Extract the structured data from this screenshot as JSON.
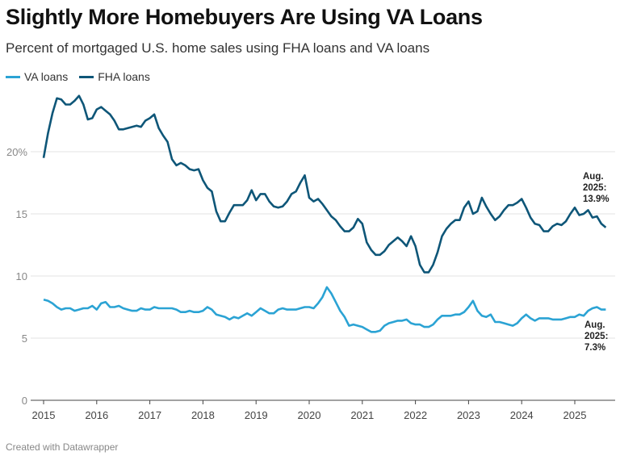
{
  "title": "Slightly More Homebuyers Are Using VA Loans",
  "subtitle": "Percent of mortgaged U.S. home sales using FHA loans and VA loans",
  "footer": "Created with Datawrapper",
  "colors": {
    "va": "#2ba3d4",
    "fha": "#0e5678"
  },
  "chart_data": {
    "type": "line",
    "x_start": "2015-01",
    "x_end": "2025-08",
    "x_frequency": "monthly",
    "xlim": [
      2015,
      2025.7
    ],
    "ylim": [
      0,
      25
    ],
    "y_ticks": [
      "0",
      "5",
      "10",
      "15",
      "20%"
    ],
    "y_tick_values": [
      0,
      5,
      10,
      15,
      20
    ],
    "x_ticks": [
      "2015",
      "2016",
      "2017",
      "2018",
      "2019",
      "2020",
      "2021",
      "2022",
      "2023",
      "2024",
      "2025"
    ],
    "grid": true,
    "legend": "top-left",
    "series": [
      {
        "name": "VA loans",
        "color": "#2ba3d4",
        "values": [
          8.1,
          8.0,
          7.8,
          7.5,
          7.3,
          7.4,
          7.4,
          7.2,
          7.3,
          7.4,
          7.4,
          7.6,
          7.3,
          7.8,
          7.9,
          7.5,
          7.5,
          7.6,
          7.4,
          7.3,
          7.2,
          7.2,
          7.4,
          7.3,
          7.3,
          7.5,
          7.4,
          7.4,
          7.4,
          7.4,
          7.3,
          7.1,
          7.1,
          7.2,
          7.1,
          7.1,
          7.2,
          7.5,
          7.3,
          6.9,
          6.8,
          6.7,
          6.5,
          6.7,
          6.6,
          6.8,
          7.0,
          6.8,
          7.1,
          7.4,
          7.2,
          7.0,
          7.0,
          7.3,
          7.4,
          7.3,
          7.3,
          7.3,
          7.4,
          7.5,
          7.5,
          7.4,
          7.8,
          8.3,
          9.1,
          8.6,
          7.9,
          7.2,
          6.7,
          6.0,
          6.1,
          6.0,
          5.9,
          5.7,
          5.5,
          5.5,
          5.6,
          6.0,
          6.2,
          6.3,
          6.4,
          6.4,
          6.5,
          6.2,
          6.1,
          6.1,
          5.9,
          5.9,
          6.1,
          6.5,
          6.8,
          6.8,
          6.8,
          6.9,
          6.9,
          7.1,
          7.5,
          8.0,
          7.2,
          6.8,
          6.7,
          6.9,
          6.3,
          6.3,
          6.2,
          6.1,
          6.0,
          6.2,
          6.6,
          6.9,
          6.6,
          6.4,
          6.6,
          6.6,
          6.6,
          6.5,
          6.5,
          6.5,
          6.6,
          6.7,
          6.7,
          6.9,
          6.8,
          7.2,
          7.4,
          7.5,
          7.3,
          7.3
        ]
      },
      {
        "name": "FHA loans",
        "color": "#0e5678",
        "values": [
          19.5,
          21.5,
          23.1,
          24.3,
          24.2,
          23.8,
          23.8,
          24.1,
          24.5,
          23.8,
          22.6,
          22.7,
          23.4,
          23.6,
          23.3,
          23.0,
          22.5,
          21.8,
          21.8,
          21.9,
          22.0,
          22.1,
          22.0,
          22.5,
          22.7,
          23.0,
          21.9,
          21.3,
          20.8,
          19.4,
          18.9,
          19.1,
          18.9,
          18.6,
          18.5,
          18.6,
          17.7,
          17.1,
          16.8,
          15.2,
          14.4,
          14.4,
          15.1,
          15.7,
          15.7,
          15.7,
          16.1,
          16.9,
          16.1,
          16.6,
          16.6,
          16.0,
          15.6,
          15.5,
          15.6,
          16.0,
          16.6,
          16.8,
          17.5,
          18.1,
          16.3,
          16.0,
          16.2,
          15.8,
          15.3,
          14.8,
          14.5,
          14.0,
          13.6,
          13.6,
          13.9,
          14.6,
          14.2,
          12.7,
          12.1,
          11.7,
          11.7,
          12.0,
          12.5,
          12.8,
          13.1,
          12.8,
          12.4,
          13.2,
          12.4,
          10.9,
          10.3,
          10.3,
          10.9,
          11.9,
          13.2,
          13.8,
          14.2,
          14.5,
          14.5,
          15.5,
          16.0,
          15.0,
          15.2,
          16.3,
          15.6,
          15.0,
          14.5,
          14.8,
          15.3,
          15.7,
          15.7,
          15.9,
          16.2,
          15.5,
          14.7,
          14.2,
          14.1,
          13.6,
          13.6,
          14.0,
          14.2,
          14.1,
          14.4,
          15.0,
          15.5,
          14.9,
          15.0,
          15.3,
          14.7,
          14.8,
          14.2,
          13.9
        ]
      }
    ],
    "annotations": [
      {
        "series": "FHA loans",
        "lines": [
          "Aug.",
          "2025:",
          "13.9%"
        ]
      },
      {
        "series": "VA loans",
        "lines": [
          "Aug.",
          "2025:",
          "7.3%"
        ]
      }
    ]
  }
}
